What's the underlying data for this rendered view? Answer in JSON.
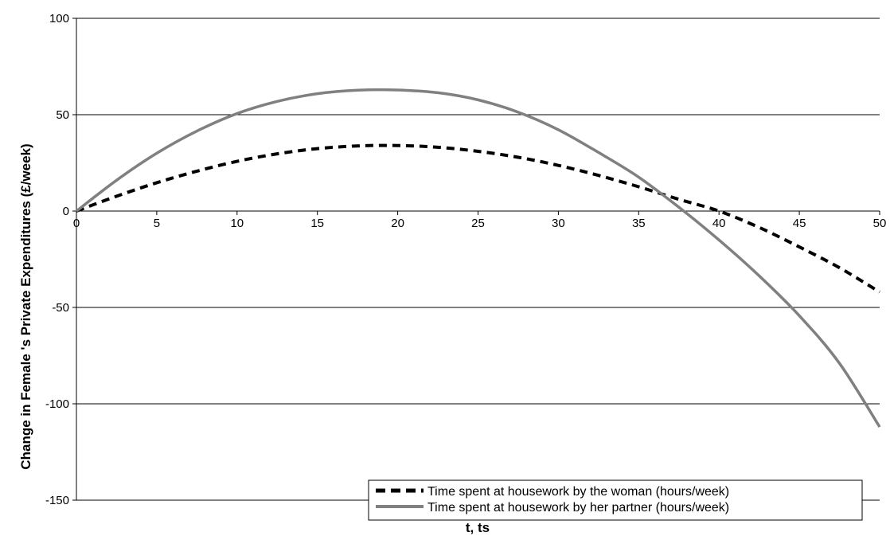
{
  "chart_data": {
    "type": "line",
    "title": "",
    "xlabel": "t, ts",
    "ylabel": "Change in Female 's Private Expenditures (£/week)",
    "xlim": [
      0,
      50
    ],
    "ylim": [
      -150,
      100
    ],
    "xticks": [
      0,
      5,
      10,
      15,
      20,
      25,
      30,
      35,
      40,
      45,
      50
    ],
    "yticks": [
      -150,
      -100,
      -50,
      0,
      50,
      100
    ],
    "grid": "horizontal",
    "legend_position": "bottom-right",
    "x": [
      0,
      2.5,
      5,
      7.5,
      10,
      12.5,
      15,
      17.5,
      20,
      22.5,
      25,
      27.5,
      30,
      32.5,
      35,
      37.5,
      40,
      42.5,
      45,
      47.5,
      50
    ],
    "series": [
      {
        "name": "Time spent at housework by the woman (hours/week)",
        "style": "dashed",
        "color": "#000000",
        "values": [
          0,
          7.7,
          14.7,
          20.7,
          25.8,
          29.7,
          32.4,
          33.8,
          34,
          33.1,
          31,
          27.9,
          23.7,
          18.5,
          12.6,
          6.1,
          0,
          -8.5,
          -18.6,
          -29.4,
          -42
        ]
      },
      {
        "name": "Time spent at housework by her partner (hours/week)",
        "style": "solid",
        "color": "#808080",
        "values": [
          0,
          16,
          30,
          41.5,
          50.6,
          56.9,
          60.9,
          62.7,
          62.8,
          61.4,
          57.7,
          51.3,
          42.2,
          30.4,
          17.6,
          2,
          -15,
          -33.6,
          -54.3,
          -79,
          -112
        ]
      }
    ]
  }
}
